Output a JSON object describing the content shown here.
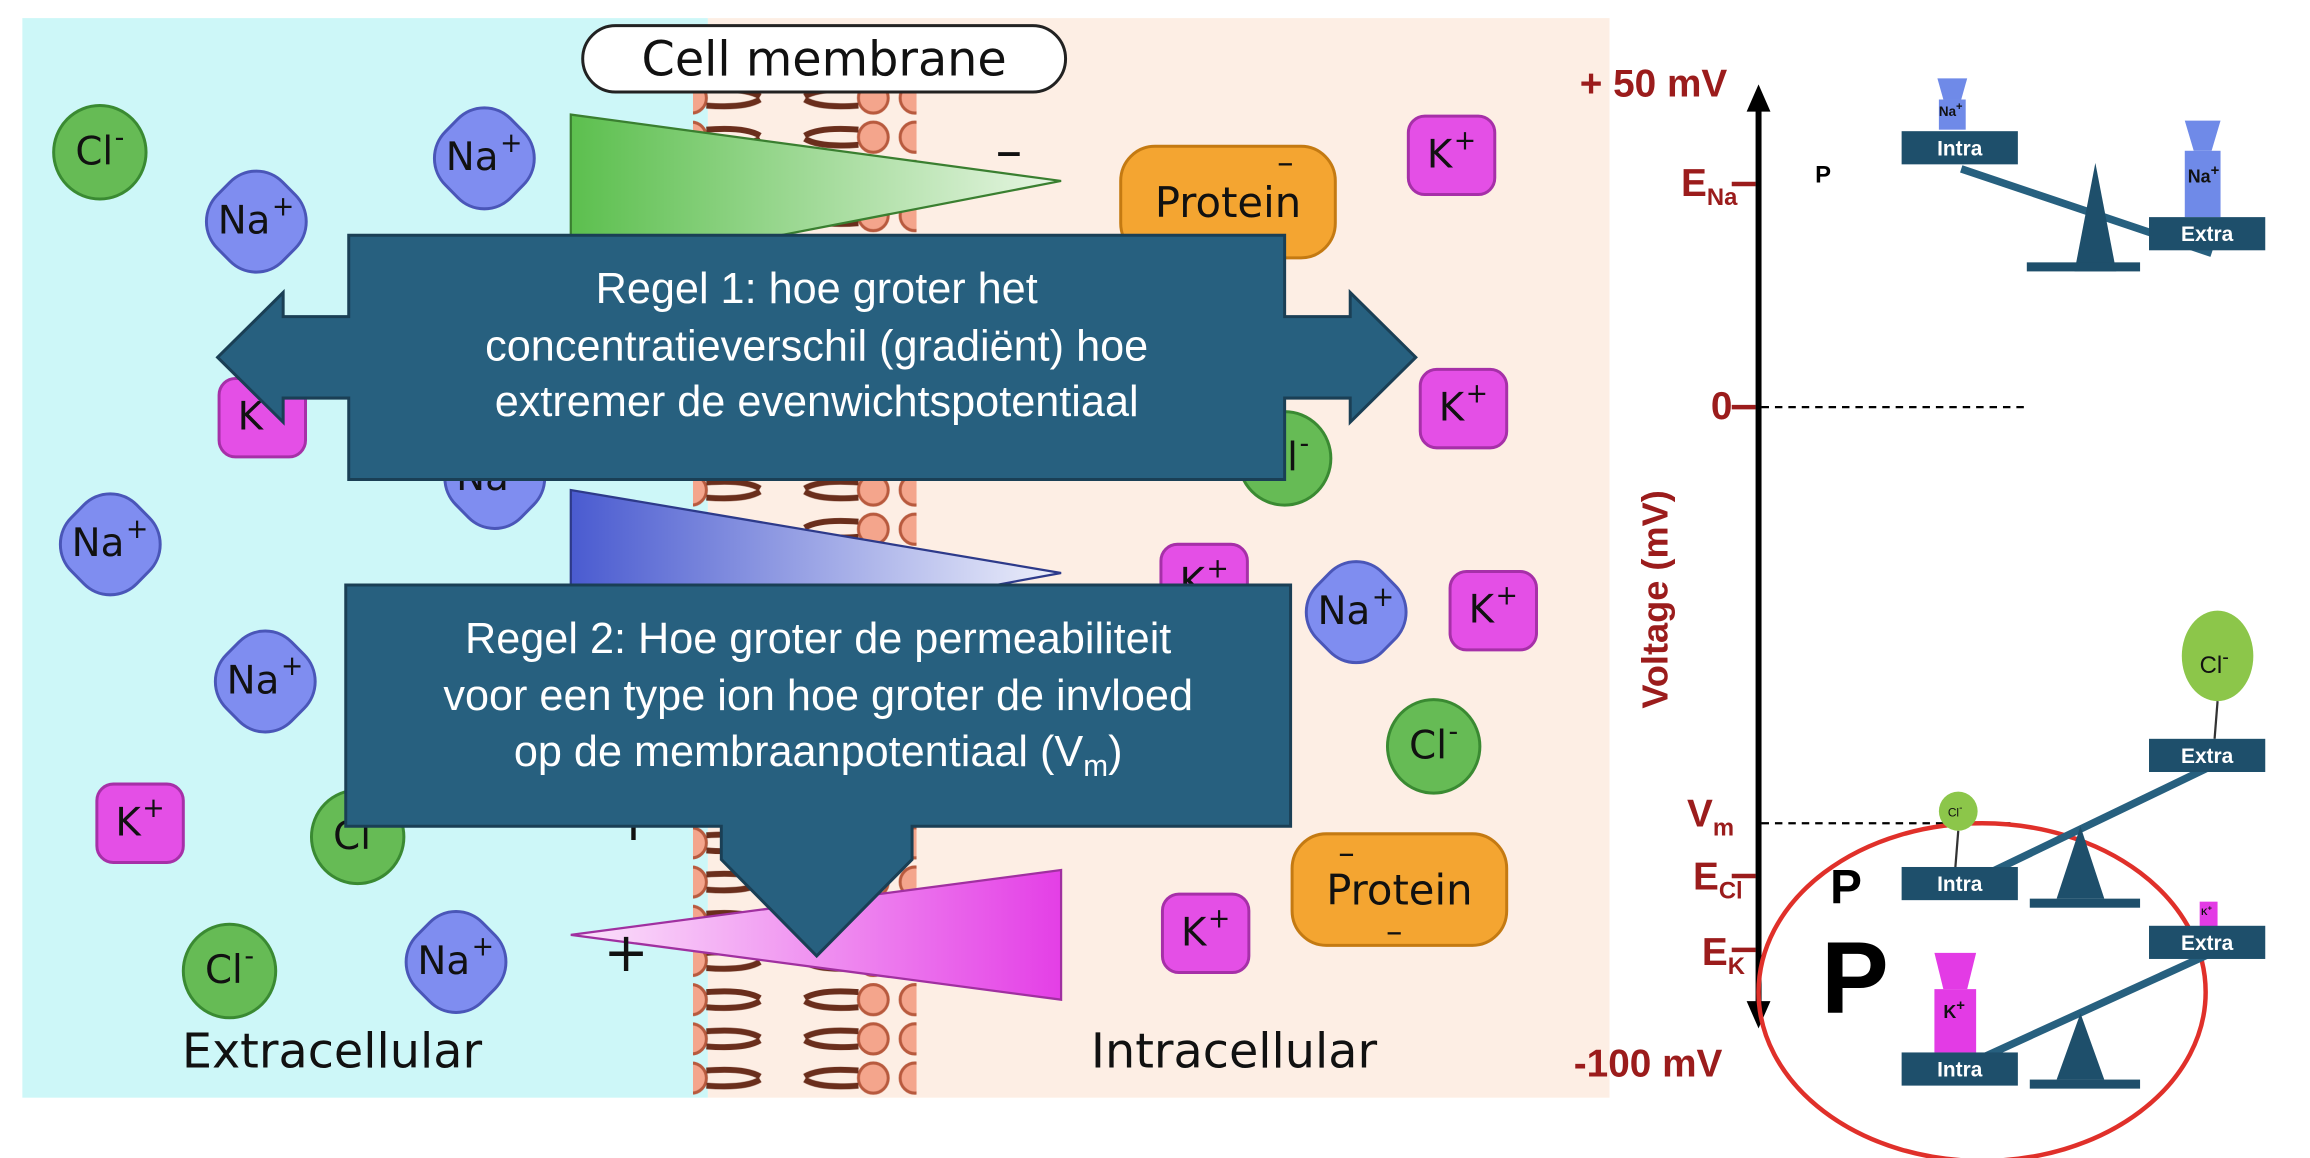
{
  "membrane_label": "Cell membrane",
  "side_labels": {
    "extracellular": "Extracellular",
    "intracellular": "Intracellular"
  },
  "ions": {
    "cl": "Cl",
    "na": "Na",
    "k": "K",
    "protein": "Protein",
    "minus_sup": "-",
    "plus_sup": "+"
  },
  "signs": {
    "plus": "+",
    "minus": "–"
  },
  "rules": {
    "rule1_lines": [
      "Regel 1: hoe groter het",
      "concentratieverschil (gradiënt) hoe",
      "extremer de evenwichtspotentiaal"
    ],
    "rule2_lines": [
      "Regel 2: Hoe groter de permeabiliteit",
      "voor een type ion hoe groter de invloed",
      "op de membraanpotentiaal (V"
    ],
    "rule2_sub": "m",
    "rule2_close": ")"
  },
  "axis": {
    "top": "+ 50 mV",
    "bottom": "-100 mV",
    "zero": "0",
    "ylabel": "Voltage (mV)",
    "e_na": "E",
    "e_na_sub": "Na",
    "vm": "V",
    "vm_sub": "m",
    "e_cl": "E",
    "e_cl_sub": "Cl",
    "e_k": "E",
    "e_k_sub": "K"
  },
  "scales": {
    "intra": "Intra",
    "extra": "Extra",
    "p_small": "P",
    "p_mid": "P",
    "p_large": "P",
    "na_weight": "Na",
    "cl_weight": "Cl",
    "k_weight": "K",
    "weight_sup_plus": "+",
    "weight_sup_minus": "-"
  },
  "colors": {
    "extracellular_bg": "#cdf7f8",
    "intracellular_bg": "#fdeee4",
    "arrow_box": "#27607f",
    "axis_red": "#9b1c1c",
    "scale_dark": "#1e4f6b",
    "na_blue": "#7f8df0",
    "cl_green": "#66bb55",
    "k_magenta": "#e44fe6",
    "protein_orange": "#f4a531",
    "circle_red": "#e0302a"
  }
}
